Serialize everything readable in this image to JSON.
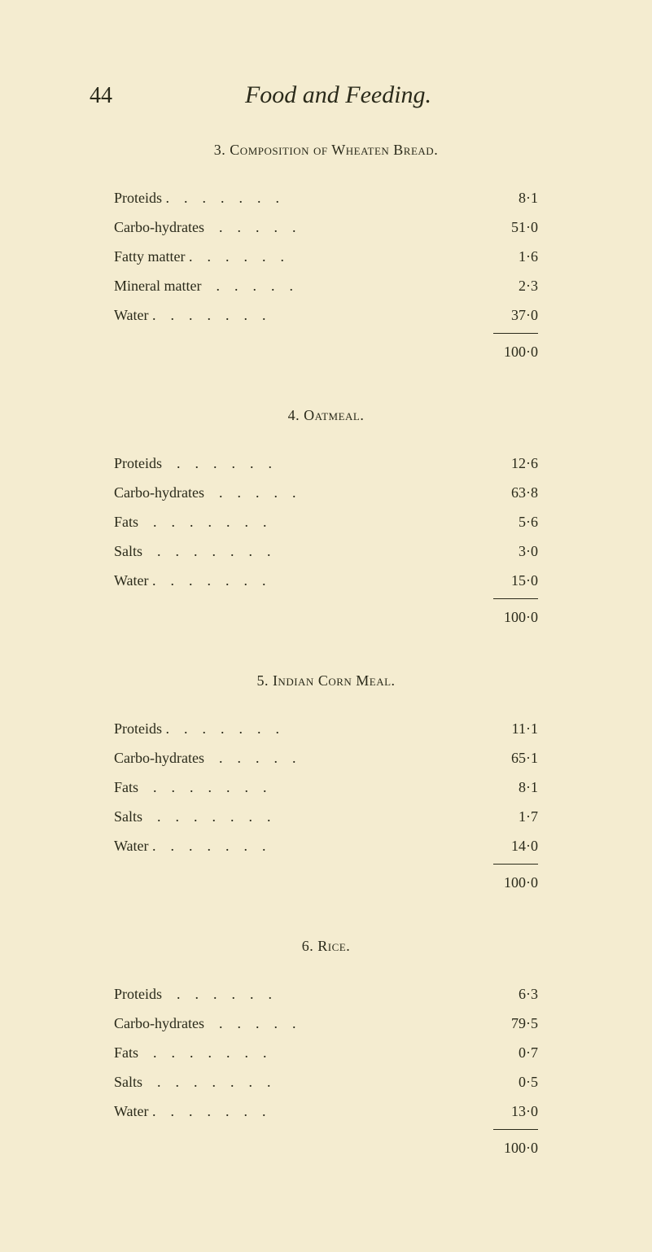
{
  "page": {
    "number": "44",
    "title": "Food and Feeding.",
    "background_color": "#f4ecd0",
    "text_color": "#2a2a1a",
    "title_fontsize": 30,
    "body_fontsize": 18
  },
  "sections": [
    {
      "heading": "3. Composition of Wheaten Bread.",
      "rows": [
        {
          "label": "Proteids .",
          "value": "8·1"
        },
        {
          "label": "Carbo-hydrates",
          "value": "51·0"
        },
        {
          "label": "Fatty matter .",
          "value": "1·6"
        },
        {
          "label": "Mineral matter",
          "value": "2·3"
        },
        {
          "label": "Water .",
          "value": "37·0"
        }
      ],
      "total": "100·0"
    },
    {
      "heading": "4. Oatmeal.",
      "rows": [
        {
          "label": "Proteids",
          "value": "12·6"
        },
        {
          "label": "Carbo-hydrates",
          "value": "63·8"
        },
        {
          "label": "Fats",
          "value": "5·6"
        },
        {
          "label": "Salts",
          "value": "3·0"
        },
        {
          "label": "Water .",
          "value": "15·0"
        }
      ],
      "total": "100·0"
    },
    {
      "heading": "5. Indian Corn Meal.",
      "rows": [
        {
          "label": "Proteids .",
          "value": "11·1"
        },
        {
          "label": "Carbo-hydrates",
          "value": "65·1"
        },
        {
          "label": "Fats",
          "value": "8·1"
        },
        {
          "label": "Salts",
          "value": "1·7"
        },
        {
          "label": "Water .",
          "value": "14·0"
        }
      ],
      "total": "100·0"
    },
    {
      "heading": "6. Rice.",
      "rows": [
        {
          "label": "Proteids",
          "value": "6·3"
        },
        {
          "label": "Carbo-hydrates",
          "value": "79·5"
        },
        {
          "label": "Fats",
          "value": "0·7"
        },
        {
          "label": "Salts",
          "value": "0·5"
        },
        {
          "label": "Water .",
          "value": "13·0"
        }
      ],
      "total": "100·0"
    }
  ]
}
